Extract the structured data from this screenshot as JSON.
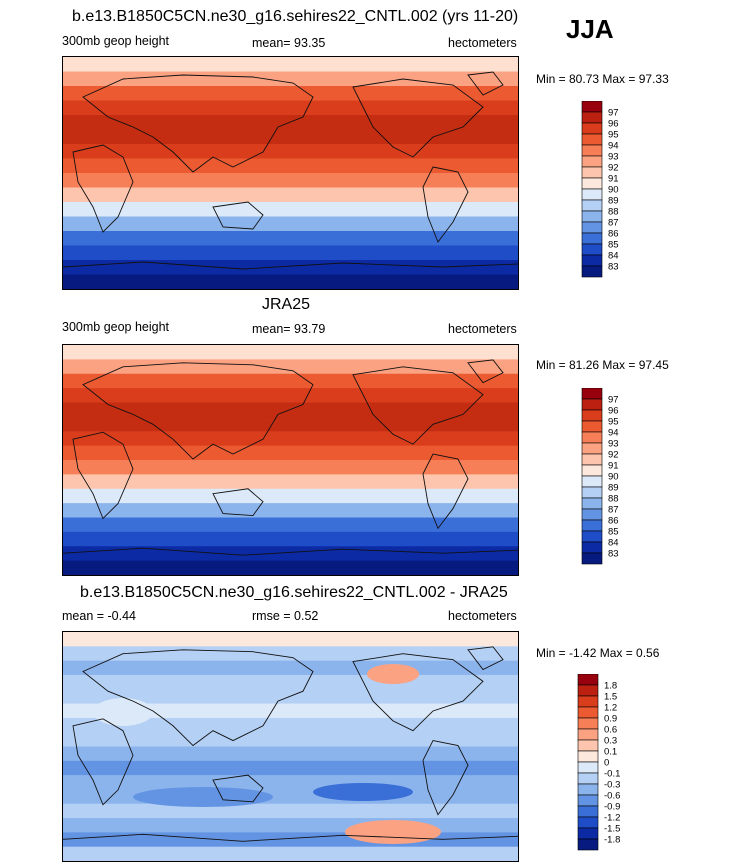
{
  "season": "JJA",
  "panels": [
    {
      "title": "b.e13.B1850C5CN.ne30_g16.sehires22_CNTL.002 (yrs 11-20)",
      "left_label": "300mb geop height",
      "center_label": "mean=  93.35",
      "right_label": "hectometers",
      "minmax": "Min =  80.73 Max =  97.33",
      "colorbar": {
        "labels": [
          "97",
          "96",
          "95",
          "94",
          "93",
          "92",
          "91",
          "90",
          "89",
          "88",
          "87",
          "86",
          "85",
          "84",
          "83"
        ],
        "colors": [
          "#99000d",
          "#bb2010",
          "#d93d1c",
          "#ec5a31",
          "#f67f58",
          "#fba282",
          "#fdc5ad",
          "#fde8dd",
          "#dce9f9",
          "#b4d0f4",
          "#8cb4ec",
          "#6394e3",
          "#3b6fd8",
          "#1e4dc7",
          "#0d2aa5",
          "#071a80"
        ]
      },
      "map_bands": [
        "#fde0cf",
        "#fba282",
        "#ec5a31",
        "#d93d1c",
        "#c42d12",
        "#c42d12",
        "#d93d1c",
        "#ec5a31",
        "#f67f58",
        "#fdc5ad",
        "#dce9f9",
        "#8cb4ec",
        "#3b6fd8",
        "#1e4dc7",
        "#0d2aa5",
        "#071a80"
      ]
    },
    {
      "title": "JRA25",
      "left_label": "300mb geop height",
      "center_label": "mean=  93.79",
      "right_label": "hectometers",
      "minmax": "Min =  81.26 Max =  97.45",
      "colorbar": {
        "labels": [
          "97",
          "96",
          "95",
          "94",
          "93",
          "92",
          "91",
          "90",
          "89",
          "88",
          "87",
          "86",
          "85",
          "84",
          "83"
        ],
        "colors": [
          "#99000d",
          "#bb2010",
          "#d93d1c",
          "#ec5a31",
          "#f67f58",
          "#fba282",
          "#fdc5ad",
          "#fde8dd",
          "#dce9f9",
          "#b4d0f4",
          "#8cb4ec",
          "#6394e3",
          "#3b6fd8",
          "#1e4dc7",
          "#0d2aa5",
          "#071a80"
        ]
      },
      "map_bands": [
        "#fde0cf",
        "#fba282",
        "#ec5a31",
        "#d93d1c",
        "#c42d12",
        "#c42d12",
        "#d93d1c",
        "#ec5a31",
        "#f67f58",
        "#fdc5ad",
        "#dce9f9",
        "#8cb4ec",
        "#3b6fd8",
        "#1e4dc7",
        "#0d2aa5",
        "#071a80"
      ]
    },
    {
      "title": "b.e13.B1850C5CN.ne30_g16.sehires22_CNTL.002 - JRA25",
      "left_label": "mean =  -0.44",
      "center_label": "rmse =   0.52",
      "right_label": "hectometers",
      "minmax": "Min =  -1.42 Max =   0.56",
      "colorbar": {
        "labels": [
          "1.8",
          "1.5",
          "1.2",
          "0.9",
          "0.6",
          "0.3",
          "0.1",
          "0",
          "-0.1",
          "-0.3",
          "-0.6",
          "-0.9",
          "-1.2",
          "-1.5",
          "-1.8"
        ],
        "colors": [
          "#99000d",
          "#bb2010",
          "#d93d1c",
          "#ec5a31",
          "#f67f58",
          "#fba282",
          "#fdc5ad",
          "#fde8dd",
          "#dce9f9",
          "#b4d0f4",
          "#8cb4ec",
          "#6394e3",
          "#3b6fd8",
          "#1e4dc7",
          "#0d2aa5",
          "#071a80"
        ]
      },
      "map_bands": [
        "#fde8dd",
        "#b4d0f4",
        "#8cb4ec",
        "#b4d0f4",
        "#b4d0f4",
        "#dce9f9",
        "#b4d0f4",
        "#b4d0f4",
        "#8cb4ec",
        "#6394e3",
        "#8cb4ec",
        "#8cb4ec",
        "#b4d0f4",
        "#8cb4ec",
        "#6394e3",
        "#b4d0f4"
      ]
    }
  ]
}
